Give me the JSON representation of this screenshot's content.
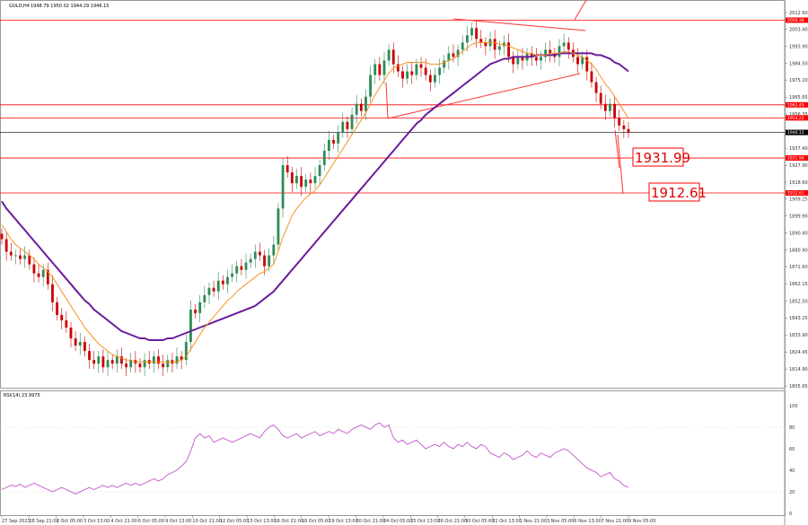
{
  "header": {
    "symbol_text": "GOLD,H4",
    "ohlc_text": "1948.79 1950.02 1944.29 1946.15",
    "rsi_text": "RSI(14) 23.9975"
  },
  "colors": {
    "bull": "#2e8b57",
    "bear": "#cc0000",
    "ma_fast": "#f7931e",
    "ma_slow": "#6a1b9a",
    "level": "#ff0000",
    "current": "#000000",
    "rsi": "#c964cf",
    "grid": "#d9d9d9"
  },
  "chart_data": [
    {
      "type": "candlestick",
      "symbol": "GOLD",
      "timeframe": "H4",
      "ylim": [
        1805.65,
        2012.6
      ],
      "y_ticks": [
        "2012.60",
        "2003.40",
        "1993.90",
        "1984.50",
        "1975.20",
        "1965.65",
        "1956.35",
        "1937.40",
        "1927.90",
        "1918.60",
        "1909.25",
        "1899.90",
        "1890.40",
        "1880.90",
        "1871.60",
        "1862.15",
        "1852.50",
        "1843.25",
        "1833.90",
        "1824.45",
        "1814.90",
        "1805.65"
      ],
      "x_labels": [
        "27 Sep 2023",
        "28 Sep 21:00",
        "2 Oct 05:00",
        "3 Oct 13:00",
        "4 Oct 21:00",
        "6 Oct 05:00",
        "9 Oct 13:00",
        "10 Oct 21:00",
        "12 Oct 05:00",
        "13 Oct 13:00",
        "16 Oct 21:00",
        "18 Oct 05:00",
        "19 Oct 13:00",
        "20 Oct 21:00",
        "24 Oct 05:00",
        "25 Oct 13:00",
        "26 Oct 21:00",
        "30 Oct 05:00",
        "31 Oct 13:00",
        "1 Nov 21:00",
        "3 Nov 05:00",
        "6 Nov 13:00",
        "7 Nov 21:00",
        "9 Nov 05:00"
      ],
      "closes": [
        1887,
        1880,
        1878,
        1878,
        1876,
        1878,
        1873,
        1868,
        1866,
        1870,
        1862,
        1852,
        1845,
        1842,
        1838,
        1832,
        1828,
        1830,
        1825,
        1820,
        1818,
        1822,
        1816,
        1820,
        1818,
        1822,
        1818,
        1816,
        1820,
        1818,
        1816,
        1820,
        1818,
        1822,
        1818,
        1816,
        1820,
        1818,
        1822,
        1820,
        1830,
        1848,
        1846,
        1852,
        1856,
        1860,
        1858,
        1864,
        1862,
        1866,
        1868,
        1872,
        1870,
        1874,
        1876,
        1880,
        1878,
        1872,
        1878,
        1884,
        1904,
        1928,
        1924,
        1918,
        1922,
        1916,
        1920,
        1918,
        1922,
        1928,
        1936,
        1942,
        1940,
        1946,
        1952,
        1948,
        1956,
        1962,
        1958,
        1966,
        1978,
        1984,
        1978,
        1986,
        1992,
        1984,
        1980,
        1976,
        1980,
        1978,
        1984,
        1982,
        1978,
        1974,
        1978,
        1982,
        1986,
        1990,
        1988,
        1992,
        1996,
        2000,
        2004,
        1998,
        1996,
        1994,
        1998,
        1992,
        1994,
        1996,
        1988,
        1984,
        1988,
        1986,
        1990,
        1988,
        1986,
        1988,
        1992,
        1990,
        1988,
        1994,
        1996,
        1992,
        1988,
        1984,
        1988,
        1980,
        1974,
        1968,
        1962,
        1958,
        1962,
        1954,
        1950,
        1948,
        1946
      ],
      "ma_fast": [
        1895,
        1891,
        1887,
        1884,
        1882,
        1880,
        1878,
        1876,
        1873,
        1871,
        1869,
        1866,
        1862,
        1858,
        1854,
        1850,
        1846,
        1842,
        1838,
        1835,
        1832,
        1829,
        1827,
        1825,
        1823,
        1822,
        1821,
        1820,
        1820,
        1819,
        1819,
        1819,
        1819,
        1819,
        1819,
        1819,
        1819,
        1819,
        1819,
        1820,
        1822,
        1826,
        1830,
        1834,
        1838,
        1841,
        1844,
        1847,
        1850,
        1853,
        1855,
        1858,
        1860,
        1862,
        1864,
        1866,
        1868,
        1869,
        1871,
        1873,
        1880,
        1888,
        1894,
        1900,
        1904,
        1907,
        1910,
        1912,
        1914,
        1917,
        1921,
        1925,
        1929,
        1933,
        1937,
        1941,
        1945,
        1949,
        1953,
        1957,
        1962,
        1967,
        1971,
        1975,
        1979,
        1982,
        1983,
        1984,
        1985,
        1985,
        1985,
        1985,
        1985,
        1984,
        1984,
        1984,
        1985,
        1986,
        1987,
        1989,
        1991,
        1993,
        1995,
        1996,
        1996,
        1996,
        1996,
        1996,
        1995,
        1995,
        1994,
        1993,
        1992,
        1991,
        1990,
        1990,
        1989,
        1989,
        1989,
        1990,
        1990,
        1990,
        1991,
        1991,
        1990,
        1989,
        1988,
        1986,
        1984,
        1981,
        1977,
        1973,
        1970,
        1966,
        1962,
        1958,
        1954
      ],
      "ma_slow": [
        1908,
        1904,
        1901,
        1898,
        1895,
        1892,
        1889,
        1886,
        1883,
        1880,
        1877,
        1874,
        1871,
        1868,
        1865,
        1862,
        1859,
        1856,
        1853,
        1851,
        1848,
        1846,
        1844,
        1842,
        1840,
        1838,
        1836,
        1835,
        1834,
        1833,
        1832,
        1832,
        1831,
        1831,
        1831,
        1831,
        1832,
        1832,
        1833,
        1834,
        1835,
        1836,
        1837,
        1838,
        1839,
        1840,
        1841,
        1842,
        1843,
        1844,
        1845,
        1846,
        1847,
        1848,
        1849,
        1850,
        1852,
        1854,
        1856,
        1858,
        1861,
        1864,
        1867,
        1870,
        1873,
        1876,
        1879,
        1882,
        1885,
        1888,
        1891,
        1894,
        1897,
        1900,
        1903,
        1906,
        1909,
        1912,
        1915,
        1918,
        1921,
        1924,
        1927,
        1930,
        1933,
        1936,
        1939,
        1942,
        1945,
        1948,
        1951,
        1953,
        1956,
        1958,
        1960,
        1962,
        1964,
        1966,
        1968,
        1970,
        1972,
        1974,
        1976,
        1978,
        1980,
        1982,
        1984,
        1985,
        1986,
        1987,
        1987,
        1988,
        1988,
        1988,
        1988,
        1988,
        1989,
        1989,
        1989,
        1989,
        1989,
        1990,
        1990,
        1990,
        1990,
        1990,
        1990,
        1990,
        1990,
        1989,
        1989,
        1988,
        1987,
        1985,
        1984,
        1982,
        1980
      ],
      "horizontal_levels": [
        2008.38,
        1961.45,
        1954.22,
        1931.99,
        1912.61
      ],
      "current_price": 1946.15,
      "level_tags": [
        "2008.38",
        "1961.45",
        "1954.22",
        "1946.15",
        "1931.99",
        "1912.61"
      ],
      "annotations": [
        "1931.99",
        "1912.61"
      ]
    },
    {
      "type": "line",
      "title": "RSI(14) 23.9975",
      "ylim": [
        0,
        100
      ],
      "y_ticks": [
        "100",
        "80",
        "60",
        "40",
        "20",
        "0"
      ],
      "values": [
        22,
        24,
        26,
        25,
        27,
        24,
        26,
        28,
        26,
        24,
        22,
        20,
        22,
        24,
        22,
        20,
        18,
        20,
        22,
        24,
        22,
        24,
        26,
        24,
        26,
        24,
        26,
        28,
        26,
        28,
        26,
        28,
        30,
        32,
        30,
        32,
        36,
        38,
        40,
        44,
        48,
        58,
        70,
        74,
        70,
        72,
        66,
        68,
        70,
        68,
        66,
        68,
        70,
        72,
        74,
        72,
        70,
        76,
        80,
        82,
        78,
        72,
        70,
        72,
        74,
        70,
        72,
        74,
        76,
        72,
        74,
        76,
        74,
        78,
        76,
        74,
        78,
        80,
        82,
        80,
        78,
        82,
        84,
        80,
        82,
        70,
        66,
        68,
        64,
        66,
        68,
        64,
        60,
        62,
        64,
        62,
        66,
        62,
        60,
        64,
        62,
        66,
        62,
        60,
        64,
        62,
        56,
        54,
        52,
        56,
        54,
        50,
        52,
        54,
        58,
        54,
        52,
        56,
        54,
        52,
        56,
        58,
        60,
        58,
        54,
        50,
        46,
        42,
        40,
        38,
        34,
        36,
        38,
        32,
        30,
        26,
        24
      ]
    }
  ]
}
